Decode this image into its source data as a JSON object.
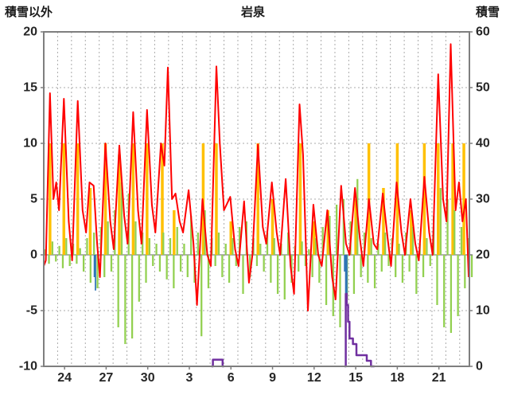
{
  "header": {
    "left_axis_title": "積雪以外",
    "chart_title": "岩泉",
    "right_axis_title": "積雪"
  },
  "chart_data": {
    "type": "line",
    "title": "岩泉",
    "left_axis": {
      "label": "積雪以外",
      "min": -10,
      "max": 20,
      "ticks": [
        20,
        15,
        10,
        5,
        0,
        -5,
        -10
      ]
    },
    "right_axis": {
      "label": "積雪",
      "min": 0,
      "max": 60,
      "ticks": [
        60,
        50,
        40,
        30,
        20,
        10,
        0
      ]
    },
    "x_axis": {
      "min": 0,
      "max": 30.7,
      "grid_interval": 1,
      "tick_positions": [
        1.5,
        4.5,
        7.5,
        10.5,
        13.5,
        16.5,
        19.5,
        22.5,
        25.5,
        28.5
      ],
      "tick_labels": [
        "24",
        "27",
        "30",
        "3",
        "6",
        "9",
        "12",
        "15",
        "18",
        "21"
      ]
    },
    "grid": {
      "color": "#ababab",
      "zero_line_color": "#808080",
      "frame_color": "#7f7f7f"
    },
    "series": [
      {
        "name": "sunshine-bars",
        "type": "bar",
        "axis": "left",
        "color": "#FFC000",
        "bar_width_days": 0.2,
        "points": [
          [
            0.45,
            10
          ],
          [
            1.45,
            10
          ],
          [
            2.45,
            10
          ],
          [
            3.35,
            6
          ],
          [
            4.45,
            10
          ],
          [
            5.45,
            9
          ],
          [
            6.45,
            10
          ],
          [
            7.45,
            10
          ],
          [
            8.55,
            10
          ],
          [
            9.4,
            4
          ],
          [
            11.5,
            10
          ],
          [
            12.45,
            10
          ],
          [
            13.5,
            3
          ],
          [
            15.45,
            10
          ],
          [
            16.5,
            5
          ],
          [
            18.5,
            10
          ],
          [
            19.5,
            3
          ],
          [
            20.5,
            4
          ],
          [
            22.5,
            5
          ],
          [
            23.45,
            10
          ],
          [
            24.5,
            6
          ],
          [
            25.5,
            10
          ],
          [
            26.5,
            4
          ],
          [
            27.45,
            10
          ],
          [
            28.45,
            10
          ],
          [
            29.5,
            10
          ],
          [
            30.3,
            10
          ]
        ]
      },
      {
        "name": "green-bars",
        "type": "bar",
        "axis": "left",
        "color": "#92D050",
        "bar_width_days": 0.13,
        "t0": 0.125,
        "dt": 0.25,
        "values": [
          0.5,
          -0.8,
          1.2,
          -0.6,
          0.8,
          -1.2,
          1.5,
          -1.0,
          1.0,
          -0.8,
          0.6,
          -1.5,
          1.5,
          -2.5,
          2.0,
          -3.0,
          2.5,
          -2.0,
          3.0,
          -1.5,
          4.0,
          -6.5,
          6.5,
          -8.0,
          5.5,
          -7.5,
          3.0,
          -4.2,
          2.0,
          -2.5,
          1.5,
          -1.0,
          1.0,
          -1.5,
          2.0,
          -2.2,
          1.5,
          -3.0,
          2.5,
          -1.5,
          1.0,
          -2.0,
          3.5,
          -2.5,
          2.0,
          -7.3,
          4.0,
          -3.0,
          1.5,
          -1.0,
          2.0,
          -2.0,
          1.0,
          -2.5,
          1.5,
          -1.0,
          2.5,
          -3.5,
          3.0,
          -2.0,
          1.5,
          -1.0,
          1.0,
          -1.5,
          2.0,
          -2.5,
          1.5,
          -3.5,
          1.0,
          -4.0,
          2.0,
          -2.5,
          0.8,
          -1.5,
          1.2,
          -1.0,
          0.5,
          -2.0,
          1.5,
          -2.5,
          2.5,
          -4.5,
          3.5,
          -5.5,
          4.5,
          -6.5,
          5.0,
          -4.0,
          3.0,
          -3.5,
          6.8,
          -2.0,
          2.0,
          -2.5,
          1.5,
          -3.0,
          1.0,
          -1.5,
          2.0,
          -1.0,
          1.5,
          -2.0,
          1.0,
          -2.5,
          2.0,
          -1.5,
          2.5,
          -3.5,
          1.0,
          -2.0,
          1.5,
          -1.0,
          3.5,
          -4.5,
          6.0,
          -6.5,
          5.0,
          -7.0,
          4.0,
          -5.5,
          2.5,
          -3.0,
          1.5,
          -2.0
        ]
      },
      {
        "name": "blue-bars",
        "type": "bar",
        "axis": "left",
        "color": "#2E75B6",
        "bar_width_days": 0.1,
        "points": [
          [
            3.65,
            -2.0
          ],
          [
            3.73,
            -3.2
          ],
          [
            21.7,
            -1.5
          ],
          [
            21.78,
            -8.5
          ],
          [
            21.86,
            -3.5
          ]
        ]
      },
      {
        "name": "temperature-line",
        "type": "line",
        "axis": "left",
        "color": "#FF0000",
        "width": 2,
        "points": [
          [
            0.0,
            -1
          ],
          [
            0.15,
            -0.5
          ],
          [
            0.45,
            14.5
          ],
          [
            0.7,
            5.0
          ],
          [
            0.9,
            6.5
          ],
          [
            1.1,
            4.0
          ],
          [
            1.45,
            14.0
          ],
          [
            1.8,
            3.0
          ],
          [
            2.05,
            -0.5
          ],
          [
            2.45,
            13.8
          ],
          [
            2.8,
            4.0
          ],
          [
            3.05,
            2.0
          ],
          [
            3.3,
            6.5
          ],
          [
            3.6,
            6.2
          ],
          [
            3.85,
            1.0
          ],
          [
            4.05,
            -2.0
          ],
          [
            4.45,
            10.0
          ],
          [
            4.8,
            3.0
          ],
          [
            5.05,
            0.5
          ],
          [
            5.45,
            9.8
          ],
          [
            5.8,
            3.5
          ],
          [
            6.05,
            1.0
          ],
          [
            6.45,
            12.8
          ],
          [
            6.8,
            4.0
          ],
          [
            7.05,
            1.0
          ],
          [
            7.45,
            13.0
          ],
          [
            7.8,
            4.5
          ],
          [
            8.05,
            2.0
          ],
          [
            8.45,
            10.0
          ],
          [
            8.7,
            8.0
          ],
          [
            8.95,
            16.8
          ],
          [
            9.25,
            5.0
          ],
          [
            9.5,
            5.5
          ],
          [
            9.8,
            3.0
          ],
          [
            10.05,
            2.0
          ],
          [
            10.45,
            5.8
          ],
          [
            10.8,
            1.0
          ],
          [
            11.05,
            -4.5
          ],
          [
            11.45,
            5.0
          ],
          [
            11.8,
            0.0
          ],
          [
            12.05,
            -1.0
          ],
          [
            12.45,
            16.9
          ],
          [
            12.7,
            10.0
          ],
          [
            13.0,
            4.0
          ],
          [
            13.45,
            5.2
          ],
          [
            13.8,
            0.5
          ],
          [
            14.05,
            -1.0
          ],
          [
            14.45,
            4.8
          ],
          [
            14.8,
            -2.5
          ],
          [
            15.05,
            0.0
          ],
          [
            15.45,
            9.9
          ],
          [
            15.8,
            2.5
          ],
          [
            16.05,
            1.0
          ],
          [
            16.45,
            6.5
          ],
          [
            16.8,
            2.0
          ],
          [
            17.05,
            0.0
          ],
          [
            17.45,
            6.8
          ],
          [
            17.8,
            -1.0
          ],
          [
            18.05,
            -3.5
          ],
          [
            18.45,
            13.5
          ],
          [
            18.7,
            9.0
          ],
          [
            19.05,
            -5.0
          ],
          [
            19.45,
            4.5
          ],
          [
            19.8,
            0.0
          ],
          [
            20.05,
            -1.0
          ],
          [
            20.45,
            4.0
          ],
          [
            20.8,
            -2.0
          ],
          [
            21.05,
            -4.0
          ],
          [
            21.45,
            6.2
          ],
          [
            21.8,
            1.0
          ],
          [
            22.05,
            0.0
          ],
          [
            22.45,
            6.0
          ],
          [
            22.8,
            1.5
          ],
          [
            23.05,
            -1.0
          ],
          [
            23.45,
            5.0
          ],
          [
            23.8,
            1.0
          ],
          [
            24.05,
            0.5
          ],
          [
            24.45,
            5.5
          ],
          [
            24.8,
            1.5
          ],
          [
            25.05,
            -1.0
          ],
          [
            25.45,
            6.5
          ],
          [
            25.8,
            2.0
          ],
          [
            26.05,
            0.0
          ],
          [
            26.45,
            5.0
          ],
          [
            26.8,
            1.0
          ],
          [
            27.05,
            -0.5
          ],
          [
            27.45,
            7.0
          ],
          [
            27.8,
            2.0
          ],
          [
            28.05,
            0.0
          ],
          [
            28.45,
            16.2
          ],
          [
            28.8,
            5.0
          ],
          [
            29.05,
            3.0
          ],
          [
            29.35,
            18.9
          ],
          [
            29.7,
            4.0
          ],
          [
            29.95,
            6.5
          ],
          [
            30.2,
            3.0
          ],
          [
            30.45,
            5.0
          ],
          [
            30.65,
            -2.0
          ]
        ]
      },
      {
        "name": "snow-depth-line",
        "type": "line",
        "axis": "right",
        "color": "#7030A0",
        "width": 2.5,
        "points": [
          [
            12.1,
            0
          ],
          [
            12.2,
            0
          ],
          [
            12.2,
            1.2
          ],
          [
            12.9,
            1.2
          ],
          [
            12.9,
            0
          ],
          [
            13.0,
            0
          ],
          [
            21.7,
            0
          ],
          [
            21.78,
            0
          ],
          [
            21.78,
            13
          ],
          [
            21.85,
            13
          ],
          [
            21.85,
            11
          ],
          [
            21.95,
            11
          ],
          [
            21.95,
            8
          ],
          [
            22.05,
            8
          ],
          [
            22.05,
            5
          ],
          [
            22.3,
            5
          ],
          [
            22.3,
            4
          ],
          [
            22.55,
            4
          ],
          [
            22.55,
            2
          ],
          [
            23.3,
            2
          ],
          [
            23.3,
            1
          ],
          [
            23.6,
            1
          ],
          [
            23.6,
            0
          ],
          [
            23.85,
            0
          ]
        ],
        "segments": [
          [
            0,
            5
          ],
          [
            6,
            23
          ]
        ]
      }
    ]
  }
}
